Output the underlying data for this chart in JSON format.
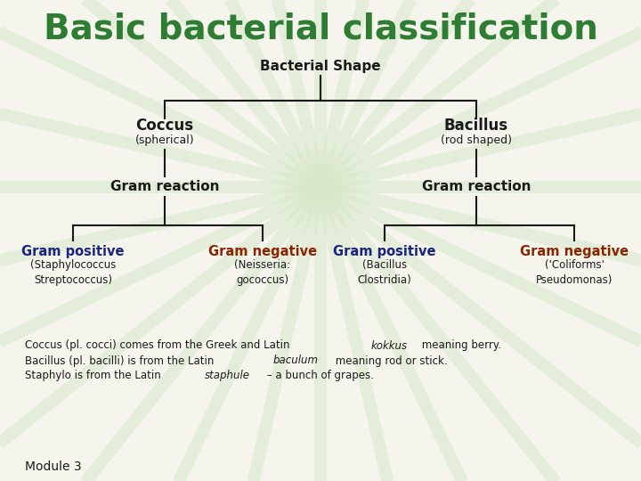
{
  "title": "Basic bacterial classification",
  "title_color": "#2e7d32",
  "title_fontsize": 28,
  "bg_color": "#f5f5ee",
  "node_bacterial_shape": "Bacterial Shape",
  "node_coccus": "Coccus",
  "node_coccus_sub": "(spherical)",
  "node_bacillus": "Bacillus",
  "node_bacillus_sub": "(rod shaped)",
  "node_gram_reaction": "Gram reaction",
  "node_gram_positive1": "Gram positive",
  "node_gram_positive1_sub": "(Staphylococcus\nStreptococcus)",
  "node_gram_negative1": "Gram negative",
  "node_gram_negative1_sub": "(Neisseria:\ngococcus)",
  "node_gram_positive2": "Gram positive",
  "node_gram_positive2_sub": "(Bacillus\nClostridia)",
  "node_gram_negative2": "Gram negative",
  "node_gram_negative2_sub": "('Coliforms'\nPseudomonas)",
  "gram_positive_color": "#1a237e",
  "gram_negative_color": "#8b2500",
  "black_color": "#1a1a1a",
  "footnote_line1_start": "Coccus (pl. cocci) comes from the Greek and Latin ",
  "footnote_line1_italic": "kokkus",
  "footnote_line1_end": " meaning berry.",
  "footnote_line2_start": "Bacillus (pl. bacilli) is from the Latin ",
  "footnote_line2_italic": "baculum",
  "footnote_line2_end": " meaning rod or stick.",
  "footnote_line3_start": "Staphylo is from the Latin ",
  "footnote_line3_italic": "staphule",
  "footnote_line3_end": " – a bunch of grapes.",
  "module_text": "Module 3"
}
